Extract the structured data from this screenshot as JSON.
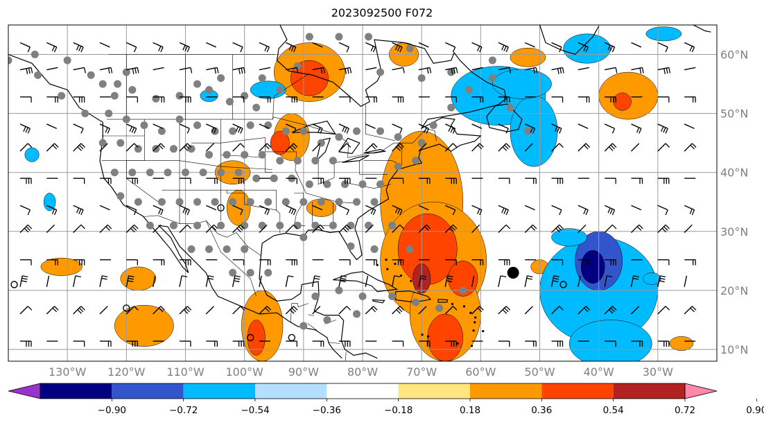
{
  "title": "2023092500 F072",
  "map": {
    "projection": "PlateCarree",
    "lon_range": [
      -140,
      -20
    ],
    "lat_range": [
      8,
      65
    ],
    "gridline_color": "#9a9a9a",
    "coastline_color": "#000000",
    "lat_labels": [
      "60°N",
      "50°N",
      "40°N",
      "30°N",
      "20°N",
      "10°N"
    ],
    "lat_values": [
      60,
      50,
      40,
      30,
      20,
      10
    ],
    "lon_labels": [
      "130°W",
      "120°W",
      "110°W",
      "100°W",
      "90°W",
      "80°W",
      "70°W",
      "60°W",
      "50°W",
      "40°W",
      "30°W"
    ],
    "lon_values": [
      -130,
      -120,
      -110,
      -100,
      -90,
      -80,
      -70,
      -60,
      -50,
      -40,
      -30
    ],
    "layers": [
      "filled anomaly contours",
      "wind barbs",
      "station/missing-data dots",
      "coastlines",
      "political boundaries",
      "storm marker"
    ],
    "storm_marker": {
      "lon": -54.5,
      "lat": 23,
      "color": "#000000"
    }
  },
  "colorbar": {
    "extend": "both",
    "tick_labels": [
      "−0.90",
      "−0.72",
      "−0.54",
      "−0.36",
      "−0.18",
      "0.18",
      "0.36",
      "0.54",
      "0.72",
      "0.90"
    ],
    "levels": [
      -0.9,
      -0.72,
      -0.54,
      -0.36,
      -0.18,
      0.18,
      0.36,
      0.54,
      0.72,
      0.9
    ],
    "colors": [
      "#9933cc",
      "#000080",
      "#3355cc",
      "#00bbff",
      "#b3e0ff",
      "#ffffff",
      "#ffe680",
      "#ff9900",
      "#ff4400",
      "#b22222",
      "#ff88aa"
    ]
  }
}
